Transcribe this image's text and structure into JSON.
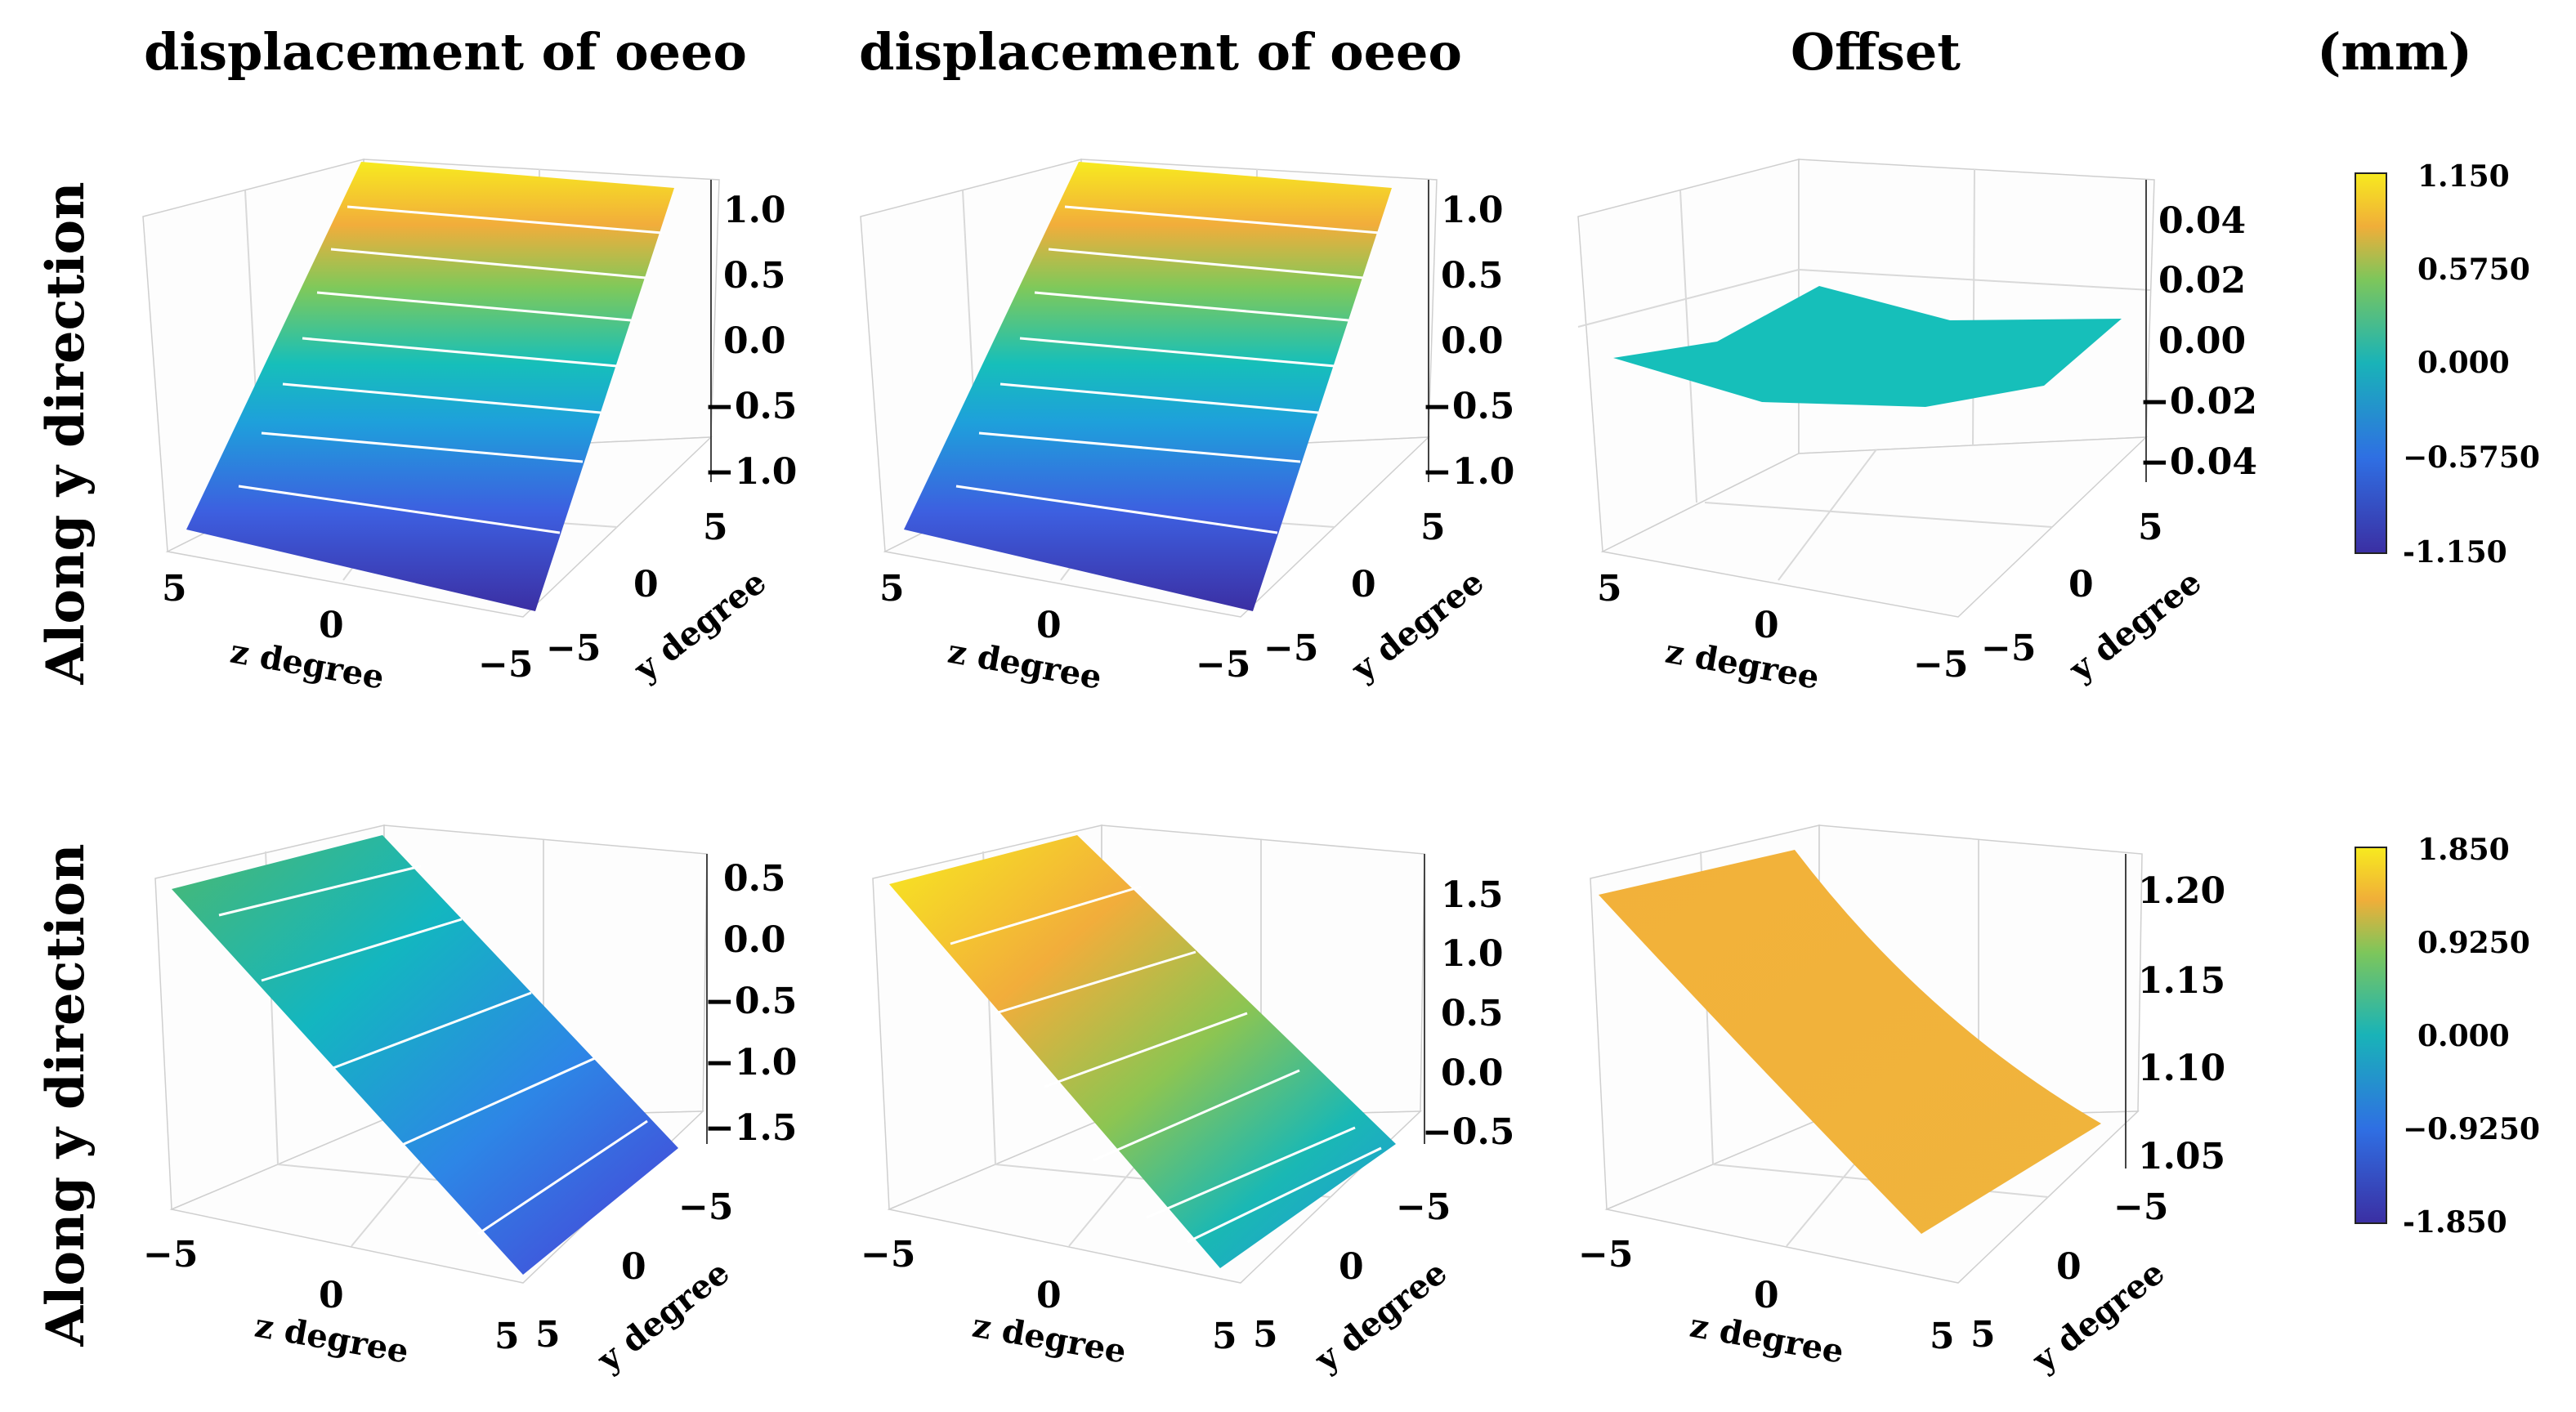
{
  "titles": {
    "col1": "displacement of oeeo",
    "col2": "displacement of oeeo",
    "col3": "Offset",
    "unit": "(mm)"
  },
  "row_labels": {
    "row1": "Along y direction",
    "row2": "Along y direction"
  },
  "colors": {
    "viridis_low": "#3b2fa3",
    "mid": "#19b3b8",
    "high": "#f7ea1f",
    "orange": "#f5b33a",
    "teal": "#16bfba",
    "contour": "#ffffff"
  },
  "chart_data": [
    {
      "type": "surface3d",
      "id": "r1c1",
      "title": "displacement of oeeo",
      "xlabel": "z degree",
      "ylabel": "y degree",
      "xticks": [
        "5",
        "0",
        "−5"
      ],
      "yticks": [
        "−5",
        "0",
        "5"
      ],
      "zticks": [
        "1.0",
        "0.5",
        "0.0",
        "−0.5",
        "−1.0"
      ],
      "zlim": [
        -1.15,
        1.15
      ],
      "z_at_ymin": -1.15,
      "z_at_ymax": 1.15
    },
    {
      "type": "surface3d",
      "id": "r1c2",
      "title": "displacement of oeeo",
      "xlabel": "z degree",
      "ylabel": "y degree",
      "xticks": [
        "5",
        "0",
        "−5"
      ],
      "yticks": [
        "−5",
        "0",
        "5"
      ],
      "zticks": [
        "1.0",
        "0.5",
        "0.0",
        "−0.5",
        "−1.0"
      ],
      "zlim": [
        -1.15,
        1.15
      ],
      "z_at_ymin": -1.15,
      "z_at_ymax": 1.15
    },
    {
      "type": "surface3d",
      "id": "r1c3",
      "title": "Offset",
      "xlabel": "z degree",
      "ylabel": "y degree",
      "xticks": [
        "5",
        "0",
        "−5"
      ],
      "yticks": [
        "−5",
        "0",
        "5"
      ],
      "zticks": [
        "0.04",
        "0.02",
        "0.00",
        "−0.02",
        "−0.04"
      ],
      "zlim": [
        -0.05,
        0.05
      ],
      "z_approx": 0.0
    },
    {
      "type": "surface3d",
      "id": "r2c1",
      "title": "displacement of oeeo",
      "xlabel": "z degree",
      "ylabel": "y degree",
      "xticks": [
        "−5",
        "0",
        "5"
      ],
      "yticks": [
        "−5",
        "0",
        "5"
      ],
      "zticks": [
        "0.5",
        "0.0",
        "−0.5",
        "−1.0",
        "−1.5"
      ],
      "zlim": [
        -1.85,
        0.7
      ],
      "z_at_ymin": 0.7,
      "z_at_ymax": -1.85
    },
    {
      "type": "surface3d",
      "id": "r2c2",
      "title": "displacement of oeeo",
      "xlabel": "z degree",
      "ylabel": "y degree",
      "xticks": [
        "−5",
        "0",
        "5"
      ],
      "yticks": [
        "−5",
        "0",
        "5"
      ],
      "zticks": [
        "1.5",
        "1.0",
        "0.5",
        "0.0",
        "−0.5"
      ],
      "zlim": [
        -0.7,
        1.85
      ],
      "z_at_ymin": 1.85,
      "z_at_ymax": -0.7
    },
    {
      "type": "surface3d",
      "id": "r2c3",
      "title": "Offset",
      "xlabel": "z degree",
      "ylabel": "y degree",
      "xticks": [
        "−5",
        "0",
        "5"
      ],
      "yticks": [
        "−5",
        "0",
        "5"
      ],
      "zticks": [
        "1.20",
        "1.15",
        "1.10",
        "1.05"
      ],
      "zlim": [
        1.05,
        1.22
      ],
      "z_range": [
        1.07,
        1.2
      ]
    }
  ],
  "colorbars": [
    {
      "id": "cb1",
      "ticks": [
        "1.150",
        "0.5750",
        "0.000",
        "−0.5750",
        "-1.150"
      ],
      "min": -1.15,
      "max": 1.15
    },
    {
      "id": "cb2",
      "ticks": [
        "1.850",
        "0.9250",
        "0.000",
        "−0.9250",
        "-1.850"
      ],
      "min": -1.85,
      "max": 1.85
    }
  ]
}
